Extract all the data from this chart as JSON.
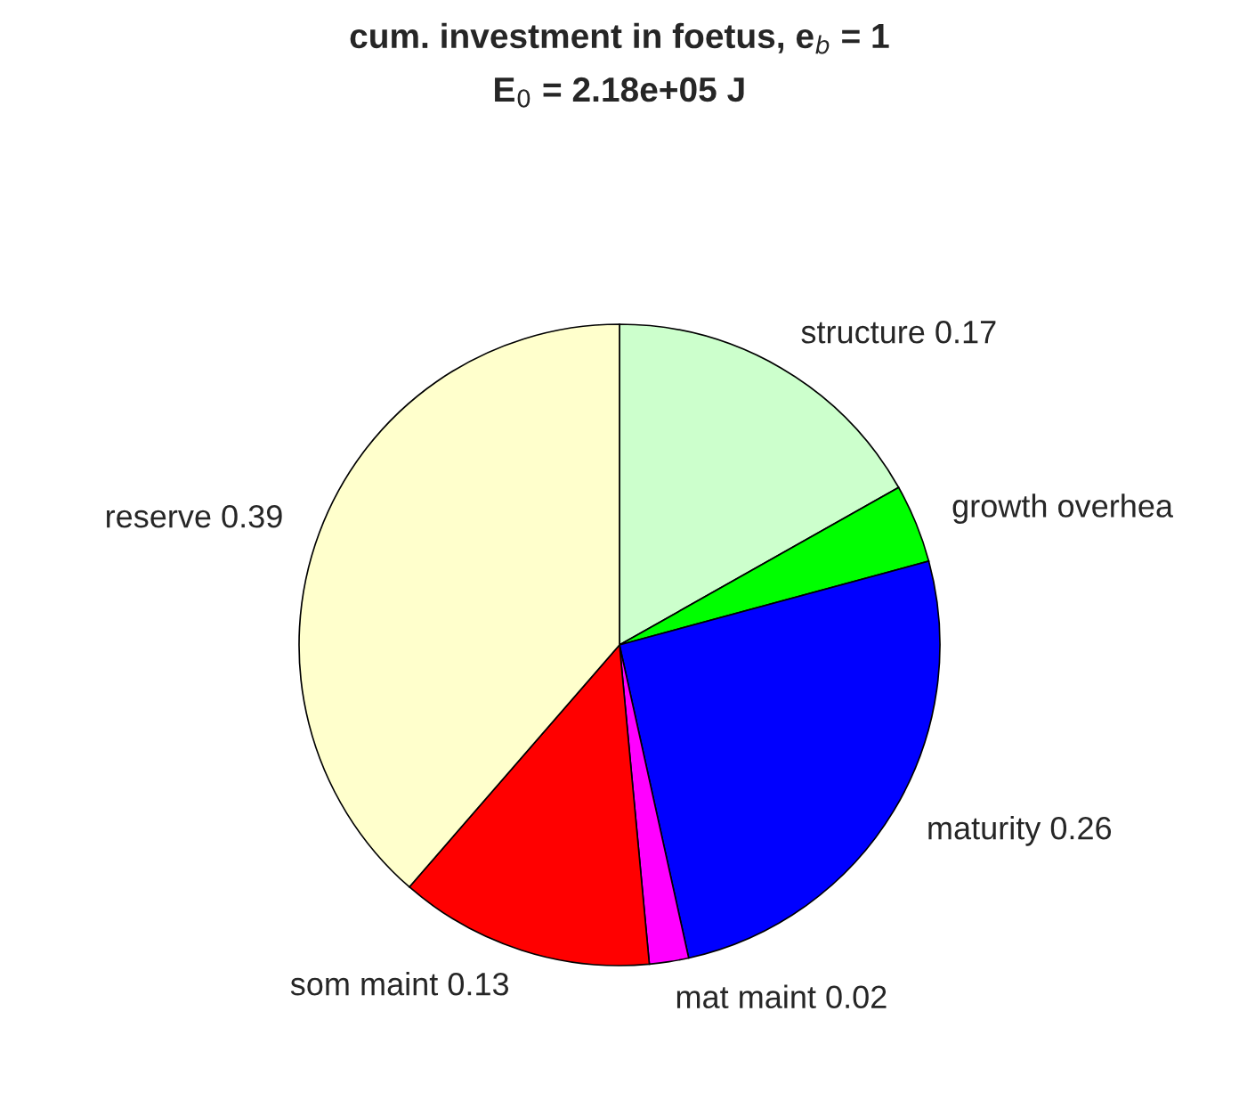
{
  "chart_data": {
    "type": "pie",
    "title": "cum. investment in foetus, e$_{b}$ = 1",
    "subtitle": "E$_{0}$ = 2.18e+05 J",
    "categories": [
      "structure",
      "growth overhea",
      "maturity",
      "mat maint",
      "som maint",
      "reserve"
    ],
    "values": [
      0.17,
      0.04,
      0.26,
      0.02,
      0.13,
      0.39
    ],
    "value_labels": [
      "0.17",
      null,
      "0.26",
      "0.02",
      "0.13",
      "0.39"
    ],
    "colors": [
      "#ccffcc",
      "#00ff00",
      "#0000ff",
      "#ff00ff",
      "#ff0000",
      "#ffffcc"
    ]
  }
}
